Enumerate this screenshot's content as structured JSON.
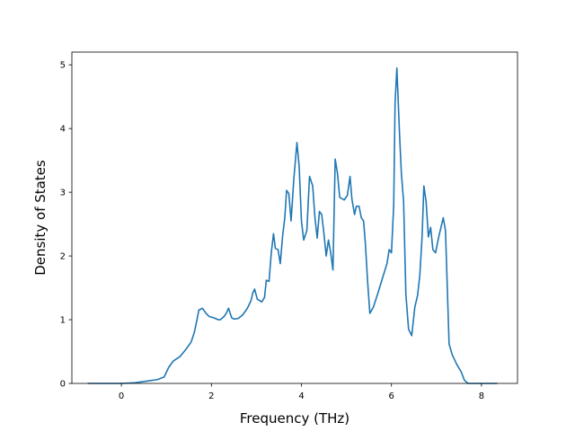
{
  "chart_data": {
    "type": "line",
    "title": "",
    "xlabel": "Frequency (THz)",
    "ylabel": "Density of States",
    "xlim": [
      -1.1,
      8.8
    ],
    "ylim": [
      0,
      5.2
    ],
    "xticks": [
      0,
      2,
      4,
      6,
      8
    ],
    "yticks": [
      0,
      1,
      2,
      3,
      4,
      5
    ],
    "grid": false,
    "legend": "none",
    "series": [
      {
        "color": "#1f77b4",
        "x": [
          -0.75,
          -0.4,
          0.0,
          0.3,
          0.6,
          0.8,
          0.95,
          1.05,
          1.15,
          1.3,
          1.45,
          1.55,
          1.62,
          1.68,
          1.72,
          1.8,
          1.88,
          1.95,
          2.05,
          2.15,
          2.2,
          2.28,
          2.33,
          2.38,
          2.45,
          2.5,
          2.6,
          2.7,
          2.8,
          2.88,
          2.92,
          2.96,
          3.02,
          3.07,
          3.12,
          3.18,
          3.22,
          3.28,
          3.33,
          3.38,
          3.42,
          3.48,
          3.53,
          3.58,
          3.63,
          3.67,
          3.72,
          3.77,
          3.83,
          3.9,
          3.95,
          4.0,
          4.05,
          4.12,
          4.18,
          4.25,
          4.3,
          4.35,
          4.4,
          4.45,
          4.5,
          4.55,
          4.6,
          4.65,
          4.7,
          4.75,
          4.8,
          4.85,
          4.9,
          4.95,
          5.02,
          5.08,
          5.12,
          5.18,
          5.22,
          5.28,
          5.33,
          5.38,
          5.42,
          5.47,
          5.52,
          5.6,
          5.7,
          5.8,
          5.9,
          5.95,
          6.0,
          6.05,
          6.08,
          6.12,
          6.18,
          6.22,
          6.27,
          6.32,
          6.38,
          6.45,
          6.52,
          6.58,
          6.63,
          6.68,
          6.72,
          6.77,
          6.82,
          6.87,
          6.92,
          6.98,
          7.05,
          7.1,
          7.15,
          7.2,
          7.28,
          7.35,
          7.45,
          7.55,
          7.62,
          7.7,
          8.0,
          8.35
        ],
        "y": [
          0,
          0,
          0,
          0.01,
          0.04,
          0.06,
          0.1,
          0.25,
          0.35,
          0.42,
          0.55,
          0.65,
          0.8,
          1.0,
          1.15,
          1.18,
          1.1,
          1.05,
          1.03,
          1.0,
          1.0,
          1.05,
          1.1,
          1.18,
          1.03,
          1.01,
          1.02,
          1.08,
          1.18,
          1.3,
          1.42,
          1.48,
          1.32,
          1.3,
          1.28,
          1.35,
          1.62,
          1.6,
          2.05,
          2.35,
          2.12,
          2.1,
          1.88,
          2.3,
          2.6,
          3.03,
          2.98,
          2.55,
          3.2,
          3.78,
          3.4,
          2.55,
          2.25,
          2.4,
          3.25,
          3.1,
          2.6,
          2.28,
          2.7,
          2.65,
          2.35,
          2.0,
          2.25,
          2.05,
          1.78,
          3.52,
          3.3,
          2.92,
          2.9,
          2.88,
          2.95,
          3.25,
          2.9,
          2.65,
          2.78,
          2.78,
          2.6,
          2.55,
          2.2,
          1.6,
          1.1,
          1.2,
          1.42,
          1.65,
          1.88,
          2.1,
          2.05,
          2.8,
          4.4,
          4.95,
          3.9,
          3.3,
          2.85,
          1.4,
          0.85,
          0.75,
          1.2,
          1.38,
          1.7,
          2.3,
          3.1,
          2.85,
          2.3,
          2.45,
          2.1,
          2.05,
          2.3,
          2.45,
          2.6,
          2.4,
          0.62,
          0.45,
          0.3,
          0.18,
          0.05,
          0.0,
          0.0,
          0.0
        ]
      }
    ]
  }
}
